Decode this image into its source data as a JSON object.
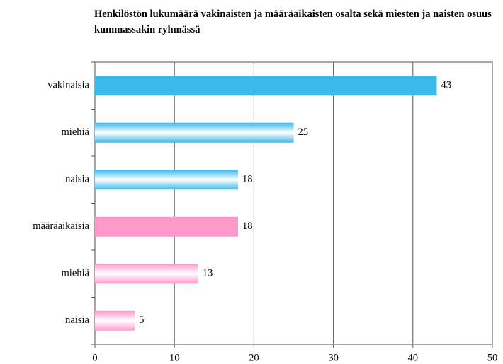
{
  "chart_data": {
    "type": "barh",
    "title": "Henkilöstön lukumäärä vakinaisten ja määräaikaisten osalta sekä miesten ja naisten osuus kummassakin ryhmässä",
    "categories": [
      "vakinaisia",
      "miehiä",
      "naisia",
      "määräaikaisia",
      "miehiä",
      "naisia"
    ],
    "values": [
      43,
      25,
      18,
      18,
      13,
      5
    ],
    "colors": [
      "#3bb9e8",
      "#3bb9e8",
      "#3bb9e8",
      "#ff99cc",
      "#ff99cc",
      "#ff99cc"
    ],
    "gradient": [
      false,
      true,
      true,
      false,
      true,
      true
    ],
    "xlim": [
      0,
      50
    ],
    "xticks": [
      0,
      10,
      20,
      30,
      40,
      50
    ],
    "grid": true
  }
}
